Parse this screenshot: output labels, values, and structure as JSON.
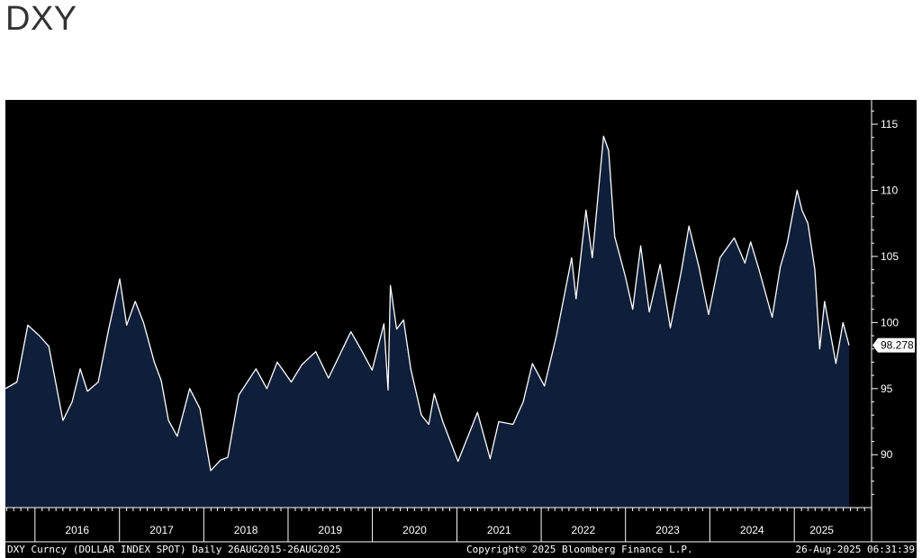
{
  "page": {
    "title": "DXY"
  },
  "colors": {
    "background": "#000000",
    "area_fill": "#0f1f3a",
    "line": "#ffffff",
    "text": "#ffffff"
  },
  "footer": {
    "left": "DXY Curncy (DOLLAR INDEX SPOT)  Daily 26AUG2015-26AUG2025",
    "center": "Copyright© 2025 Bloomberg Finance L.P.",
    "right": "26-Aug-2025 06:31:39"
  },
  "chart_data": {
    "type": "area",
    "title": "DXY",
    "xlabel": "",
    "ylabel": "",
    "x_range": [
      "2015-08-26",
      "2025-08-26"
    ],
    "ylim": [
      86,
      116.5
    ],
    "y_ticks": [
      90,
      95,
      100,
      105,
      110,
      115
    ],
    "x_tick_labels": [
      "2016",
      "2017",
      "2018",
      "2019",
      "2020",
      "2021",
      "2022",
      "2023",
      "2024",
      "2025"
    ],
    "last_value_label": "98.278",
    "grid": false,
    "series": [
      {
        "points": [
          [
            "2015-08-26",
            95.0
          ],
          [
            "2015-10-15",
            95.5
          ],
          [
            "2015-12-01",
            99.8
          ],
          [
            "2016-01-20",
            99.0
          ],
          [
            "2016-03-01",
            98.2
          ],
          [
            "2016-05-01",
            92.6
          ],
          [
            "2016-06-10",
            94.0
          ],
          [
            "2016-07-15",
            96.5
          ],
          [
            "2016-08-15",
            94.8
          ],
          [
            "2016-10-01",
            95.5
          ],
          [
            "2016-11-15",
            99.5
          ],
          [
            "2017-01-02",
            103.3
          ],
          [
            "2017-02-01",
            99.8
          ],
          [
            "2017-03-10",
            101.6
          ],
          [
            "2017-04-15",
            100.0
          ],
          [
            "2017-06-01",
            97.0
          ],
          [
            "2017-07-01",
            95.6
          ],
          [
            "2017-08-01",
            92.6
          ],
          [
            "2017-09-08",
            91.4
          ],
          [
            "2017-11-01",
            95.0
          ],
          [
            "2017-12-15",
            93.5
          ],
          [
            "2018-01-31",
            88.8
          ],
          [
            "2018-03-15",
            89.6
          ],
          [
            "2018-04-15",
            89.8
          ],
          [
            "2018-06-01",
            94.5
          ],
          [
            "2018-08-15",
            96.5
          ],
          [
            "2018-10-01",
            95.0
          ],
          [
            "2018-11-15",
            97.0
          ],
          [
            "2019-01-15",
            95.5
          ],
          [
            "2019-03-01",
            96.8
          ],
          [
            "2019-05-01",
            97.8
          ],
          [
            "2019-06-25",
            95.8
          ],
          [
            "2019-09-30",
            99.3
          ],
          [
            "2019-11-15",
            97.9
          ],
          [
            "2019-12-31",
            96.4
          ],
          [
            "2020-02-20",
            99.9
          ],
          [
            "2020-03-09",
            94.9
          ],
          [
            "2020-03-19",
            102.8
          ],
          [
            "2020-04-15",
            99.5
          ],
          [
            "2020-05-15",
            100.2
          ],
          [
            "2020-06-15",
            96.5
          ],
          [
            "2020-07-31",
            93.0
          ],
          [
            "2020-09-01",
            92.3
          ],
          [
            "2020-09-25",
            94.6
          ],
          [
            "2020-11-01",
            92.5
          ],
          [
            "2021-01-06",
            89.5
          ],
          [
            "2021-03-31",
            93.2
          ],
          [
            "2021-05-25",
            89.7
          ],
          [
            "2021-07-01",
            92.5
          ],
          [
            "2021-09-01",
            92.3
          ],
          [
            "2021-10-15",
            94.0
          ],
          [
            "2021-11-24",
            96.9
          ],
          [
            "2022-01-15",
            95.2
          ],
          [
            "2022-03-08",
            99.0
          ],
          [
            "2022-05-13",
            104.9
          ],
          [
            "2022-06-01",
            101.8
          ],
          [
            "2022-07-14",
            108.5
          ],
          [
            "2022-08-10",
            104.9
          ],
          [
            "2022-09-28",
            114.1
          ],
          [
            "2022-10-20",
            113.0
          ],
          [
            "2022-11-15",
            106.5
          ],
          [
            "2022-12-31",
            103.5
          ],
          [
            "2023-02-01",
            101.0
          ],
          [
            "2023-03-08",
            105.8
          ],
          [
            "2023-04-14",
            100.8
          ],
          [
            "2023-05-31",
            104.4
          ],
          [
            "2023-07-14",
            99.6
          ],
          [
            "2023-09-01",
            104.0
          ],
          [
            "2023-10-03",
            107.3
          ],
          [
            "2023-11-15",
            104.2
          ],
          [
            "2023-12-27",
            100.6
          ],
          [
            "2024-02-14",
            104.9
          ],
          [
            "2024-04-16",
            106.4
          ],
          [
            "2024-06-01",
            104.5
          ],
          [
            "2024-06-26",
            106.1
          ],
          [
            "2024-08-01",
            104.0
          ],
          [
            "2024-09-27",
            100.4
          ],
          [
            "2024-11-01",
            104.2
          ],
          [
            "2024-12-01",
            106.0
          ],
          [
            "2025-01-13",
            110.0
          ],
          [
            "2025-02-03",
            108.5
          ],
          [
            "2025-03-01",
            107.5
          ],
          [
            "2025-03-31",
            104.0
          ],
          [
            "2025-04-21",
            98.0
          ],
          [
            "2025-05-12",
            101.6
          ],
          [
            "2025-06-30",
            96.9
          ],
          [
            "2025-07-31",
            100.0
          ],
          [
            "2025-08-26",
            98.278
          ]
        ]
      }
    ]
  }
}
